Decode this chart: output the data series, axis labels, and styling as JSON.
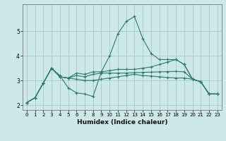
{
  "xlabel": "Humidex (Indice chaleur)",
  "bg_color": "#cce8e8",
  "grid_color": "#aacccc",
  "line_color": "#2a7a70",
  "s1": [
    2.1,
    2.3,
    2.9,
    3.5,
    3.2,
    2.7,
    2.5,
    2.45,
    2.35,
    3.35,
    4.0,
    4.9,
    5.4,
    5.6,
    4.7,
    4.1,
    3.85,
    3.85,
    3.85,
    3.65,
    3.05,
    2.95,
    2.45,
    2.45
  ],
  "s2": [
    2.1,
    2.3,
    2.9,
    3.5,
    3.15,
    3.1,
    3.3,
    3.25,
    3.35,
    3.35,
    3.4,
    3.45,
    3.45,
    3.45,
    3.5,
    3.55,
    3.65,
    3.75,
    3.85,
    3.65,
    3.05,
    2.95,
    2.45,
    2.45
  ],
  "s3": [
    2.1,
    2.3,
    2.9,
    3.5,
    3.15,
    3.1,
    3.2,
    3.15,
    3.25,
    3.3,
    3.3,
    3.3,
    3.3,
    3.32,
    3.33,
    3.34,
    3.35,
    3.36,
    3.37,
    3.35,
    3.05,
    2.95,
    2.45,
    2.45
  ],
  "s4": [
    2.1,
    2.3,
    2.9,
    3.5,
    3.15,
    3.1,
    3.05,
    3.0,
    3.0,
    3.05,
    3.1,
    3.15,
    3.2,
    3.25,
    3.2,
    3.18,
    3.15,
    3.12,
    3.1,
    3.1,
    3.05,
    2.95,
    2.45,
    2.45
  ],
  "xlim": [
    -0.5,
    23.5
  ],
  "ylim": [
    1.8,
    6.1
  ],
  "yticks": [
    2,
    3,
    4,
    5
  ],
  "xticks": [
    0,
    1,
    2,
    3,
    4,
    5,
    6,
    7,
    8,
    9,
    10,
    11,
    12,
    13,
    14,
    15,
    16,
    17,
    18,
    19,
    20,
    21,
    22,
    23
  ]
}
